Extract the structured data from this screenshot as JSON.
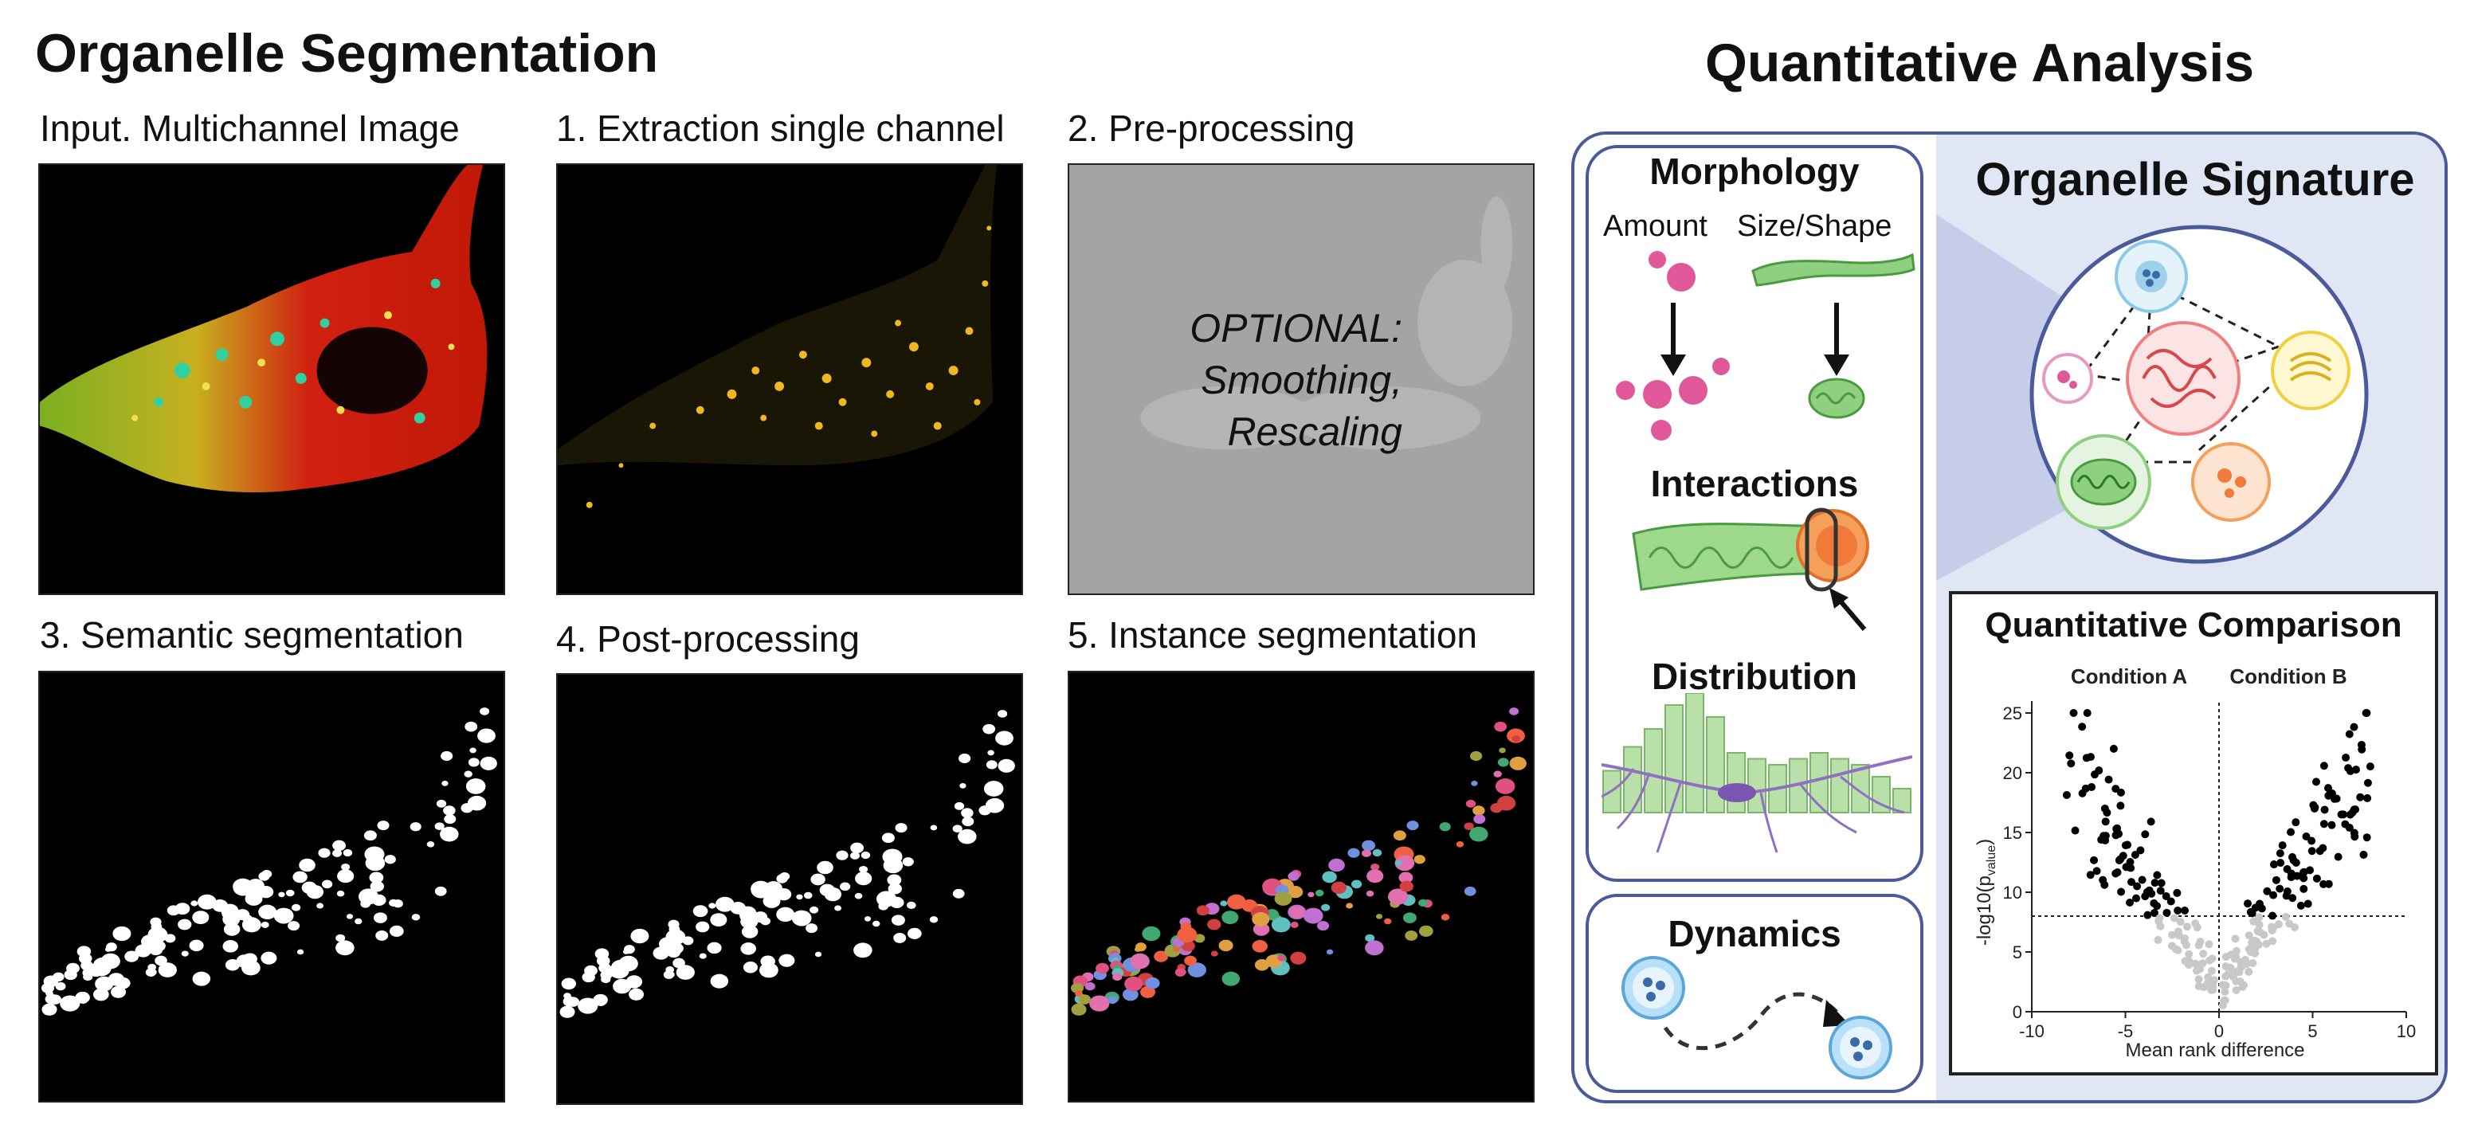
{
  "left": {
    "title": "Organelle Segmentation",
    "panels": [
      {
        "label": "Input. Multichannel Image"
      },
      {
        "label": "1. Extraction single channel"
      },
      {
        "label": "2. Pre-processing",
        "note_lines": [
          "OPTIONAL:",
          "Smoothing,",
          "Rescaling"
        ]
      },
      {
        "label": "3. Semantic segmentation"
      },
      {
        "label": "4. Post-processing"
      },
      {
        "label": "5. Instance segmentation"
      }
    ]
  },
  "right": {
    "title": "Quantitative Analysis",
    "morphology": {
      "title": "Morphology",
      "amount": "Amount",
      "size_shape": "Size/Shape"
    },
    "interactions": {
      "title": "Interactions"
    },
    "distribution": {
      "title": "Distribution",
      "bars": [
        0.35,
        0.55,
        0.7,
        0.9,
        1.0,
        0.8,
        0.5,
        0.45,
        0.4,
        0.45,
        0.5,
        0.45,
        0.4,
        0.3,
        0.2
      ]
    },
    "dynamics": {
      "title": "Dynamics"
    },
    "signature": {
      "title": "Organelle Signature"
    },
    "comparison": {
      "title": "Quantitative Comparison",
      "condition_a": "Condition A",
      "condition_b": "Condition B",
      "xlabel": "Mean rank difference",
      "ylabel": "-log10(p",
      "ylabel_sub": "value",
      "ylabel_end": ")",
      "xticks": [
        "-10",
        "-5",
        "0",
        "5",
        "10"
      ],
      "yticks": [
        "0",
        "5",
        "10",
        "15",
        "20",
        "25"
      ],
      "colors": {
        "significant": "#000000",
        "nonsignificant": "#c8c8c8"
      }
    }
  }
}
